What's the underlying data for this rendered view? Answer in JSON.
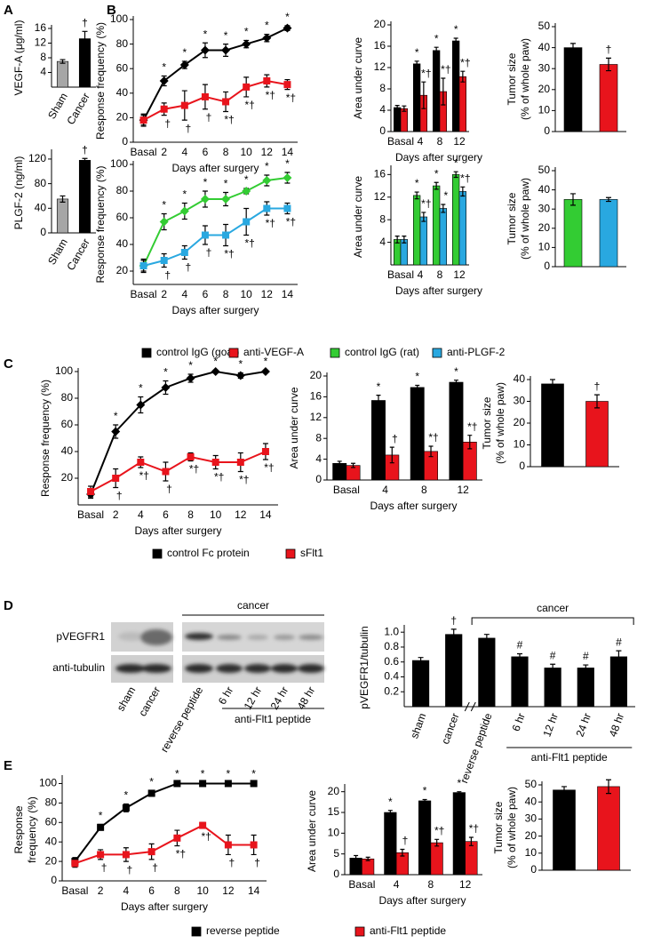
{
  "panel_labels": [
    "A",
    "B",
    "C",
    "D",
    "E"
  ],
  "blot": {
    "title": "cancer",
    "rows": [
      "pVEGFR1",
      "anti-tubulin"
    ],
    "lanes": [
      "sham",
      "cancer",
      "reverse peptide",
      "6 hr",
      "12 hr",
      "24 hr",
      "48 hr"
    ],
    "group": "anti-Flt1 peptide"
  },
  "chart_data": [
    {
      "type": "bar",
      "ylabel": "VEGF-A (μg/ml)",
      "categories": [
        "Sham",
        "Cancer"
      ],
      "values": [
        7,
        13.2
      ],
      "errors": [
        0.5,
        2
      ],
      "colors": [
        "#a6a6a6",
        "#000000"
      ],
      "annotations": [
        null,
        "†"
      ],
      "ylim": [
        0,
        16
      ],
      "yticks": [
        4,
        8,
        12,
        16
      ]
    },
    {
      "type": "bar",
      "ylabel": "PLGF-2 (ng/ml)",
      "categories": [
        "Sham",
        "Cancer"
      ],
      "values": [
        55,
        118
      ],
      "errors": [
        5,
        3
      ],
      "colors": [
        "#a6a6a6",
        "#000000"
      ],
      "annotations": [
        null,
        "†"
      ],
      "ylim": [
        0,
        130
      ],
      "yticks": [
        0,
        40,
        80,
        120
      ]
    },
    {
      "type": "line",
      "ylabel": "Response frequency (%)",
      "xlabel": "Days after surgery",
      "categories": [
        "Basal",
        "2",
        "4",
        "6",
        "8",
        "10",
        "12",
        "14"
      ],
      "ylim": [
        0,
        100
      ],
      "yticks": [
        0,
        20,
        40,
        60,
        80,
        100
      ],
      "series": [
        {
          "name": "control IgG (goat)",
          "color": "#000000",
          "marker": "diamond",
          "values": [
            18,
            50,
            63,
            75,
            75,
            80,
            85,
            93
          ],
          "errors": [
            4,
            4,
            3,
            6,
            5,
            3,
            3,
            2
          ],
          "annotations": [
            null,
            "*",
            "*",
            "*",
            "*",
            "*",
            "*",
            "*"
          ]
        },
        {
          "name": "anti-VEGF-A",
          "color": "#e8141c",
          "marker": "square",
          "values": [
            18,
            27,
            30,
            37,
            33,
            45,
            50,
            47
          ],
          "errors": [
            5,
            5,
            12,
            10,
            8,
            8,
            5,
            4
          ],
          "annotations": [
            null,
            "†",
            "†",
            "†",
            "*†",
            "*†",
            "*†",
            "*†"
          ]
        }
      ]
    },
    {
      "type": "bar",
      "ylabel": "Area under curve",
      "xlabel": "Days after surgery",
      "categories": [
        "Basal",
        "4",
        "8",
        "12"
      ],
      "ylim": [
        0,
        20
      ],
      "yticks": [
        0,
        4,
        8,
        12,
        16,
        20
      ],
      "series": [
        {
          "color": "#000000",
          "values": [
            4.5,
            12.7,
            15.2,
            17
          ],
          "errors": [
            0.4,
            0.5,
            0.6,
            0.5
          ],
          "annotations": [
            null,
            "*",
            "*",
            "*"
          ]
        },
        {
          "color": "#e8141c",
          "values": [
            4.3,
            6.8,
            7.5,
            10.3
          ],
          "errors": [
            0.5,
            2.5,
            2.5,
            1
          ],
          "annotations": [
            null,
            "*†",
            "*†",
            "*†"
          ]
        }
      ]
    },
    {
      "type": "bar",
      "ylabel": [
        "Tumor size",
        "(% of whole paw)"
      ],
      "categories": [
        null,
        null
      ],
      "values": [
        40,
        32
      ],
      "errors": [
        2,
        3
      ],
      "colors": [
        "#000000",
        "#e8141c"
      ],
      "annotations": [
        null,
        "†"
      ],
      "ylim": [
        0,
        50
      ],
      "yticks": [
        0,
        10,
        20,
        30,
        40,
        50
      ]
    },
    {
      "type": "line",
      "ylabel": "Response frequency (%)",
      "xlabel": "Days after surgery",
      "categories": [
        "Basal",
        "2",
        "4",
        "6",
        "8",
        "10",
        "12",
        "14"
      ],
      "ylim": [
        10,
        100
      ],
      "yticks": [
        20,
        40,
        60,
        80,
        100
      ],
      "series": [
        {
          "name": "control IgG (rat)",
          "color": "#33cc33",
          "marker": "diamond",
          "values": [
            24,
            57,
            65,
            74,
            74,
            80,
            88,
            90
          ],
          "errors": [
            4,
            6,
            6,
            6,
            5,
            2,
            4,
            4
          ],
          "annotations": [
            null,
            "*",
            "*",
            "*",
            "*",
            "*",
            "*",
            "*"
          ]
        },
        {
          "name": "anti-PLGF-2",
          "color": "#29a8e0",
          "marker": "square",
          "values": [
            24,
            28,
            34,
            47,
            47,
            57,
            67,
            67
          ],
          "errors": [
            5,
            5,
            5,
            7,
            8,
            10,
            5,
            4
          ],
          "annotations": [
            null,
            "†",
            "†",
            "†",
            "*†",
            "*†",
            "*†",
            "*†"
          ]
        }
      ]
    },
    {
      "type": "bar",
      "ylabel": "Area under curve",
      "xlabel": "Days after surgery",
      "categories": [
        "Basal",
        "4",
        "8",
        "12"
      ],
      "ylim": [
        0,
        17
      ],
      "yticks": [
        4,
        8,
        12,
        16
      ],
      "series": [
        {
          "color": "#33cc33",
          "values": [
            4.5,
            12.3,
            14,
            16
          ],
          "errors": [
            0.6,
            0.6,
            0.6,
            0.5
          ],
          "annotations": [
            null,
            "*",
            "*",
            "*"
          ]
        },
        {
          "color": "#29a8e0",
          "values": [
            4.5,
            8.5,
            10,
            13
          ],
          "errors": [
            0.6,
            0.8,
            0.7,
            0.8
          ],
          "annotations": [
            null,
            "*†",
            "*",
            "*†"
          ]
        }
      ]
    },
    {
      "type": "bar",
      "ylabel": [
        "Tumor size",
        "(% of whole paw)"
      ],
      "categories": [
        null,
        null
      ],
      "values": [
        35,
        35
      ],
      "errors": [
        3,
        1
      ],
      "colors": [
        "#33cc33",
        "#29a8e0"
      ],
      "ylim": [
        0,
        50
      ],
      "yticks": [
        0,
        10,
        20,
        30,
        40,
        50
      ]
    },
    {
      "type": "line",
      "ylabel": "Response frequency (%)",
      "xlabel": "Days after surgery",
      "categories": [
        "Basal",
        "2",
        "4",
        "6",
        "8",
        "10",
        "12",
        "14"
      ],
      "ylim": [
        0,
        100
      ],
      "yticks": [
        20,
        40,
        60,
        80,
        100
      ],
      "series": [
        {
          "name": "control Fc protein",
          "color": "#000000",
          "marker": "diamond",
          "values": [
            8,
            55,
            75,
            88,
            95,
            100,
            97,
            100
          ],
          "errors": [
            3,
            5,
            6,
            5,
            3,
            1,
            2,
            1
          ],
          "annotations": [
            null,
            "*",
            "*",
            "*",
            "*",
            "*",
            "*",
            "*"
          ]
        },
        {
          "name": "sFlt1",
          "color": "#e8141c",
          "marker": "square",
          "values": [
            10,
            20,
            32,
            25,
            36,
            32,
            32,
            40
          ],
          "errors": [
            4,
            7,
            4,
            7,
            3,
            5,
            7,
            6
          ],
          "annotations": [
            null,
            "†",
            "*†",
            "†",
            "*†",
            "*†",
            "*†",
            "*†"
          ]
        }
      ]
    },
    {
      "type": "bar",
      "ylabel": "Area under curve",
      "xlabel": "Days after surgery",
      "categories": [
        "Basal",
        "4",
        "8",
        "12"
      ],
      "ylim": [
        0,
        20
      ],
      "yticks": [
        0,
        4,
        8,
        12,
        16,
        20
      ],
      "series": [
        {
          "color": "#000000",
          "values": [
            3.2,
            15.3,
            17.8,
            18.8
          ],
          "errors": [
            0.4,
            1,
            0.4,
            0.4
          ],
          "annotations": [
            null,
            "*",
            "*",
            "*"
          ]
        },
        {
          "color": "#e8141c",
          "values": [
            2.8,
            4.8,
            5.5,
            7.3
          ],
          "errors": [
            0.4,
            1.5,
            1,
            1.3
          ],
          "annotations": [
            null,
            "†",
            "*†",
            "*†"
          ]
        }
      ]
    },
    {
      "type": "bar",
      "ylabel": [
        "Tumor size",
        "(% of whole paw)"
      ],
      "categories": [
        null,
        null
      ],
      "values": [
        38,
        30
      ],
      "errors": [
        2,
        3
      ],
      "colors": [
        "#000000",
        "#e8141c"
      ],
      "annotations": [
        null,
        "†"
      ],
      "ylim": [
        0,
        40
      ],
      "yticks": [
        0,
        10,
        20,
        30,
        40
      ]
    },
    {
      "type": "bar",
      "ylabel": "pVEGFR1/tubulin",
      "categories": [
        "sham",
        "cancer",
        "reverse peptide",
        "6 hr",
        "12 hr",
        "24 hr",
        "48 hr"
      ],
      "values": [
        0.62,
        0.97,
        0.92,
        0.67,
        0.52,
        0.52,
        0.67
      ],
      "errors": [
        0.04,
        0.07,
        0.05,
        0.04,
        0.05,
        0.04,
        0.08
      ],
      "color": "#000000",
      "annotations": [
        null,
        "†",
        null,
        "#",
        "#",
        "#",
        "#"
      ],
      "groups": [
        "cancer",
        "anti-Flt1 peptide"
      ],
      "ylim": [
        0,
        1.05
      ],
      "yticks": [
        0.2,
        0.4,
        0.6,
        0.8,
        {
          "value": 1,
          "label": "1.0"
        }
      ]
    },
    {
      "type": "line",
      "ylabel": [
        "Response",
        "frequency (%)"
      ],
      "xlabel": "Days after surgery",
      "categories": [
        "Basal",
        "2",
        "4",
        "6",
        "8",
        "10",
        "12",
        "14"
      ],
      "ylim": [
        0,
        105
      ],
      "yticks": [
        0,
        20,
        40,
        60,
        80,
        100
      ],
      "series": [
        {
          "name": "reverse peptide",
          "color": "#000000",
          "marker": "square",
          "values": [
            20,
            55,
            75,
            90,
            100,
            100,
            100,
            100
          ],
          "errors": [
            4,
            3,
            4,
            3,
            1,
            1,
            1,
            1
          ],
          "annotations": [
            null,
            "*",
            "*",
            "*",
            "*",
            "*",
            "*",
            "*"
          ]
        },
        {
          "name": "anti-Flt1 peptide",
          "color": "#e8141c",
          "marker": "square",
          "values": [
            18,
            27,
            27,
            30,
            44,
            57,
            37,
            37
          ],
          "errors": [
            4,
            5,
            7,
            8,
            8,
            3,
            10,
            10
          ],
          "annotations": [
            null,
            "†",
            "†",
            "†",
            "*†",
            "*†",
            "†",
            "†"
          ]
        }
      ]
    },
    {
      "type": "bar",
      "ylabel": "Area under curve",
      "xlabel": "Days after surgery",
      "categories": [
        "Basal",
        "4",
        "8",
        "12"
      ],
      "ylim": [
        0,
        21
      ],
      "yticks": [
        0,
        5,
        10,
        15,
        20
      ],
      "series": [
        {
          "color": "#000000",
          "values": [
            4,
            15,
            17.8,
            19.8
          ],
          "errors": [
            0.6,
            0.5,
            0.3,
            0.2
          ],
          "annotations": [
            null,
            "*",
            "*",
            "*"
          ]
        },
        {
          "color": "#e8141c",
          "values": [
            3.8,
            5.3,
            7.7,
            8
          ],
          "errors": [
            0.4,
            0.8,
            0.8,
            1
          ],
          "annotations": [
            null,
            "†",
            "*†",
            "*†"
          ]
        }
      ]
    },
    {
      "type": "bar",
      "ylabel": [
        "Tumor size",
        "(% of whole paw)"
      ],
      "categories": [
        null,
        null
      ],
      "values": [
        47,
        49
      ],
      "errors": [
        2,
        4
      ],
      "colors": [
        "#000000",
        "#e8141c"
      ],
      "ylim": [
        0,
        50
      ],
      "yticks": [
        0,
        10,
        20,
        30,
        40,
        50
      ]
    }
  ]
}
